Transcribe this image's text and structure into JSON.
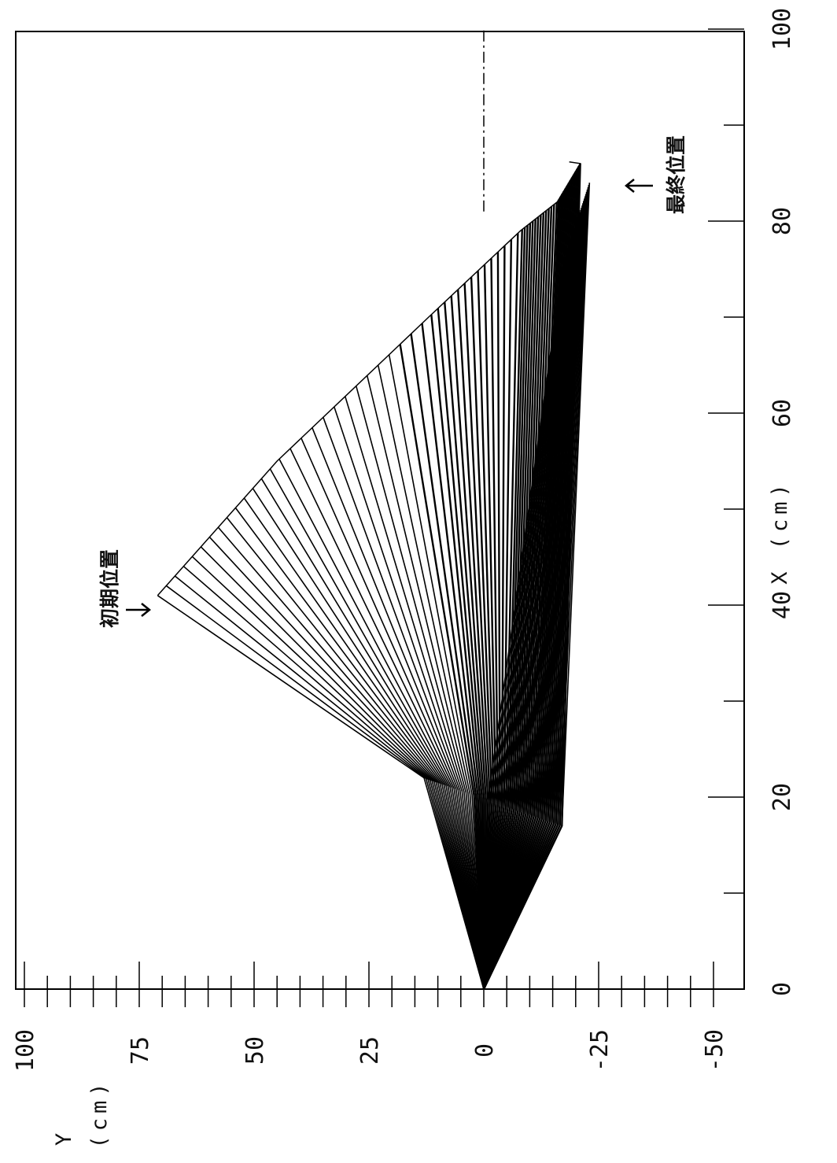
{
  "chart_data": {
    "type": "line",
    "title": "",
    "xlabel": "X (cm)",
    "ylabel": "Y (cm)",
    "xlim": [
      0,
      100
    ],
    "ylim": [
      -50,
      100
    ],
    "x_ticks": [
      0,
      20,
      40,
      60,
      80,
      100
    ],
    "y_ticks": [
      100,
      75,
      50,
      25,
      0,
      -25,
      -50
    ],
    "grid": false,
    "orientation": "rotated-90-clockwise",
    "annotations": [
      {
        "text": "初期位置",
        "x": 41,
        "y": 72
      },
      {
        "text": "最終位置",
        "x": 85,
        "y": -21
      }
    ],
    "reference_line": {
      "style": "dash-dot",
      "x_from": 81,
      "x_to": 100,
      "y": 0
    },
    "sweep": {
      "frames": 70,
      "joint_start": [
        0,
        0
      ],
      "elbow_initial": [
        22,
        13
      ],
      "elbow_final": [
        17,
        -17
      ],
      "tip_initial": [
        41,
        71
      ],
      "tip_final": [
        86,
        -21
      ],
      "tip_path": [
        [
          41,
          71
        ],
        [
          55,
          45
        ],
        [
          70,
          12
        ],
        [
          79,
          -8
        ],
        [
          82,
          -16
        ],
        [
          86,
          -21
        ]
      ],
      "lower_arm_end": [
        [
          75,
          -17
        ],
        [
          84,
          -23
        ]
      ]
    }
  },
  "labels": {
    "y_axis": [
      "Y",
      "(cm)"
    ],
    "x_axis": "X (cm)"
  }
}
